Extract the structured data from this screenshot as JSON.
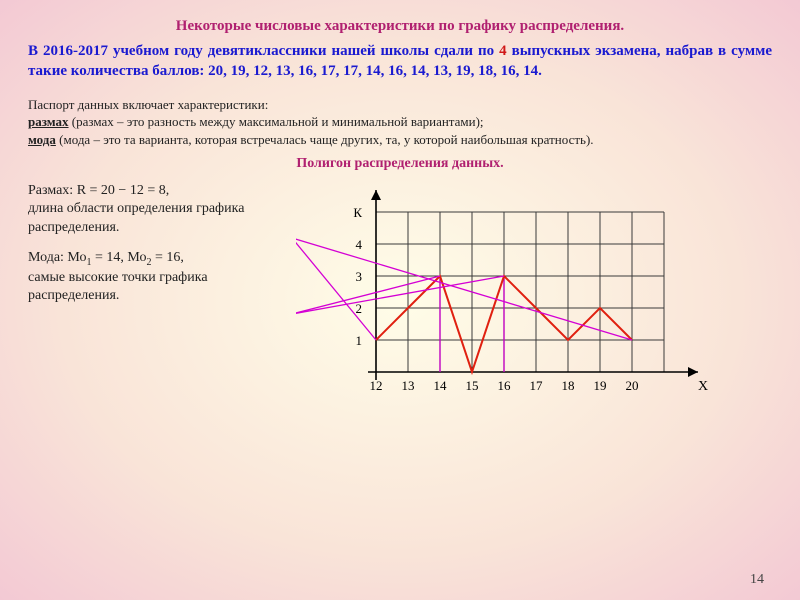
{
  "title": "Некоторые числовые характеристики по графику распределения.",
  "intro_prefix": "В 2016-2017 учебном году девятиклассники нашей школы сдали по ",
  "intro_hl": "4",
  "intro_suffix": " выпускных экзамена, набрав в сумме такие количества баллов: 20, 19, 12, 13, 16, 17, 17, 14, 16, 14, 13, 19, 18, 16, 14.",
  "passport_lead": "Паспорт данных включает характеристики:",
  "term_razm": "размах",
  "def_razm": " (размах – это разность между максимальной и минимальной вариантами);",
  "term_moda": "мода",
  "def_moda": " (мода – это та варианта, которая встречалась чаще других, та, у которой наибольшая кратность).",
  "subtitle": "Полигон распределения данных.",
  "range_line1": "Размах: R = 20 − 12 = 8,",
  "range_line2": "длина области определения графика распределения.",
  "mode_line1a": "Мода: Мо",
  "mode_line1b": " = 14, Мо",
  "mode_line1c": " = 16,",
  "mode_line2": "самые высокие точки графика распределения.",
  "sub1": "1",
  "sub2": "2",
  "chart": {
    "type": "line",
    "x_labels": [
      "12",
      "13",
      "14",
      "15",
      "16",
      "17",
      "18",
      "19",
      "20"
    ],
    "y_labels": [
      "1",
      "2",
      "3",
      "4",
      "К"
    ],
    "x_axis_label": "X",
    "series": [
      {
        "x": 12,
        "y": 1
      },
      {
        "x": 13,
        "y": 2
      },
      {
        "x": 14,
        "y": 3
      },
      {
        "x": 15,
        "y": 0
      },
      {
        "x": 16,
        "y": 3
      },
      {
        "x": 17,
        "y": 2
      },
      {
        "x": 18,
        "y": 1
      },
      {
        "x": 19,
        "y": 2
      },
      {
        "x": 20,
        "y": 1
      }
    ],
    "grid_color": "#3a3a3a",
    "line_color": "#e02010",
    "line_width": 2,
    "vert_color": "#c000c0",
    "vert_at": [
      14,
      16
    ],
    "anno_line_color": "#d400d4",
    "anno_lines": [
      {
        "from_text": "range",
        "to_x": 12,
        "to_y": 1
      },
      {
        "from_text": "range",
        "to_x": 20,
        "to_y": 1
      },
      {
        "from_text": "mode",
        "to_x": 14,
        "to_y": 3
      },
      {
        "from_text": "mode",
        "to_x": 16,
        "to_y": 3
      }
    ],
    "ylim": [
      0,
      5
    ],
    "xlim": [
      12,
      20
    ]
  },
  "page_number": "14"
}
